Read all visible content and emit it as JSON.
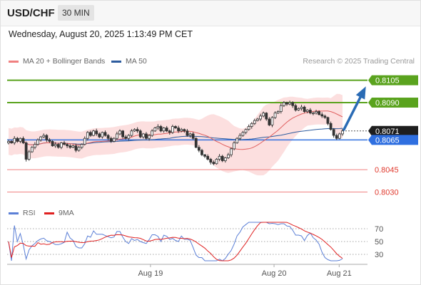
{
  "header": {
    "symbol": "USD/CHF",
    "timeframe": "30 MIN"
  },
  "datetime": "Wednesday, August 20, 2025 1:13:49 PM CET",
  "legend": {
    "items": [
      {
        "label": "MA 20 + Bollinger Bands",
        "color": "#f08080"
      },
      {
        "label": "MA 50",
        "color": "#2d5c9e"
      }
    ],
    "credit": "Research © 2025 Trading Central"
  },
  "rsi_legend": {
    "items": [
      {
        "label": "RSI",
        "color": "#5b7fd6"
      },
      {
        "label": "9MA",
        "color": "#e02020"
      }
    ]
  },
  "colors": {
    "resistance": "#5aa31e",
    "support": "#f08080",
    "current": "#1e1e1e",
    "pivot": "#2f6fe0",
    "arrow": "#2a6bb5",
    "candle": "#333333",
    "bollinger_fill": "#fbd4d4"
  },
  "chart_data": {
    "type": "candlestick",
    "instrument": "USD/CHF",
    "x_tick_labels": [
      "Aug 19",
      "Aug 20",
      "Aug 21"
    ],
    "y_range": [
      0.8025,
      0.8112
    ],
    "levels": [
      {
        "value": 0.8105,
        "label": "0.8105",
        "kind": "resistance"
      },
      {
        "value": 0.809,
        "label": "0.8090",
        "kind": "resistance"
      },
      {
        "value": 0.8071,
        "label": "0.8071",
        "kind": "current"
      },
      {
        "value": 0.8065,
        "label": "0.8065",
        "kind": "pivot"
      },
      {
        "value": 0.8045,
        "label": "0.8045",
        "kind": "support"
      },
      {
        "value": 0.803,
        "label": "0.8030",
        "kind": "support"
      }
    ],
    "close_series": [
      0.8064,
      0.8063,
      0.8066,
      0.8064,
      0.8066,
      0.8063,
      0.8052,
      0.8057,
      0.806,
      0.8062,
      0.8065,
      0.8067,
      0.8068,
      0.8065,
      0.8064,
      0.8061,
      0.8062,
      0.806,
      0.8063,
      0.8062,
      0.8061,
      0.806,
      0.8061,
      0.8058,
      0.806,
      0.8062,
      0.8066,
      0.807,
      0.8068,
      0.8071,
      0.8069,
      0.8067,
      0.807,
      0.8068,
      0.8066,
      0.8064,
      0.8066,
      0.8069,
      0.8071,
      0.8067,
      0.8066,
      0.8068,
      0.8071,
      0.8072,
      0.8071,
      0.8067,
      0.8069,
      0.8066,
      0.8068,
      0.8071,
      0.8073,
      0.8074,
      0.8071,
      0.8073,
      0.8071,
      0.807,
      0.8074,
      0.8073,
      0.8071,
      0.8072,
      0.8071,
      0.8068,
      0.8069,
      0.8066,
      0.806,
      0.8058,
      0.8055,
      0.8054,
      0.8052,
      0.805,
      0.8049,
      0.8052,
      0.8054,
      0.8051,
      0.8053,
      0.8055,
      0.8059,
      0.8063,
      0.8066,
      0.8068,
      0.807,
      0.8072,
      0.8074,
      0.8076,
      0.8078,
      0.8079,
      0.8081,
      0.8083,
      0.8079,
      0.8075,
      0.808,
      0.8083,
      0.8084,
      0.8088,
      0.809,
      0.8089,
      0.809,
      0.8088,
      0.8085,
      0.8086,
      0.8087,
      0.8084,
      0.8085,
      0.8083,
      0.8083,
      0.8084,
      0.8082,
      0.8081,
      0.808,
      0.8076,
      0.8072,
      0.8068,
      0.8066,
      0.8069,
      0.8071
    ],
    "rsi_axis_labels": [
      "70",
      "50",
      "30"
    ],
    "rsi_range": [
      20,
      80
    ],
    "rsi_levels": [
      70,
      50,
      30
    ],
    "projection": {
      "from": 0.8071,
      "to": 0.8105
    }
  }
}
